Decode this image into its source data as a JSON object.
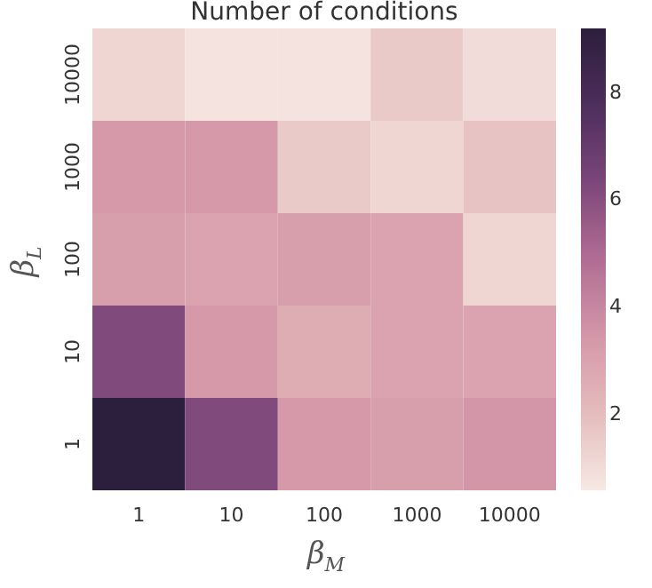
{
  "chart_data": {
    "type": "heatmap",
    "title": "Number of conditions",
    "xlabel": "β$_{M}$",
    "ylabel": "β$_{L}$",
    "categories": [
      "1",
      "10",
      "100",
      "1000",
      "10000"
    ],
    "y_categories": [
      "10000",
      "1000",
      "100",
      "10",
      "1"
    ],
    "cells": [
      [
        1.2,
        0.8,
        0.8,
        1.6,
        1.0
      ],
      [
        3.4,
        3.4,
        1.6,
        1.2,
        1.8
      ],
      [
        3.2,
        3.0,
        3.2,
        3.0,
        1.2
      ],
      [
        6.2,
        3.4,
        2.6,
        3.0,
        3.0
      ],
      [
        9.2,
        6.2,
        3.4,
        3.2,
        3.5
      ]
    ],
    "clim": [
      0.6,
      9.2
    ],
    "cticks": [
      2,
      4,
      6,
      8
    ]
  }
}
